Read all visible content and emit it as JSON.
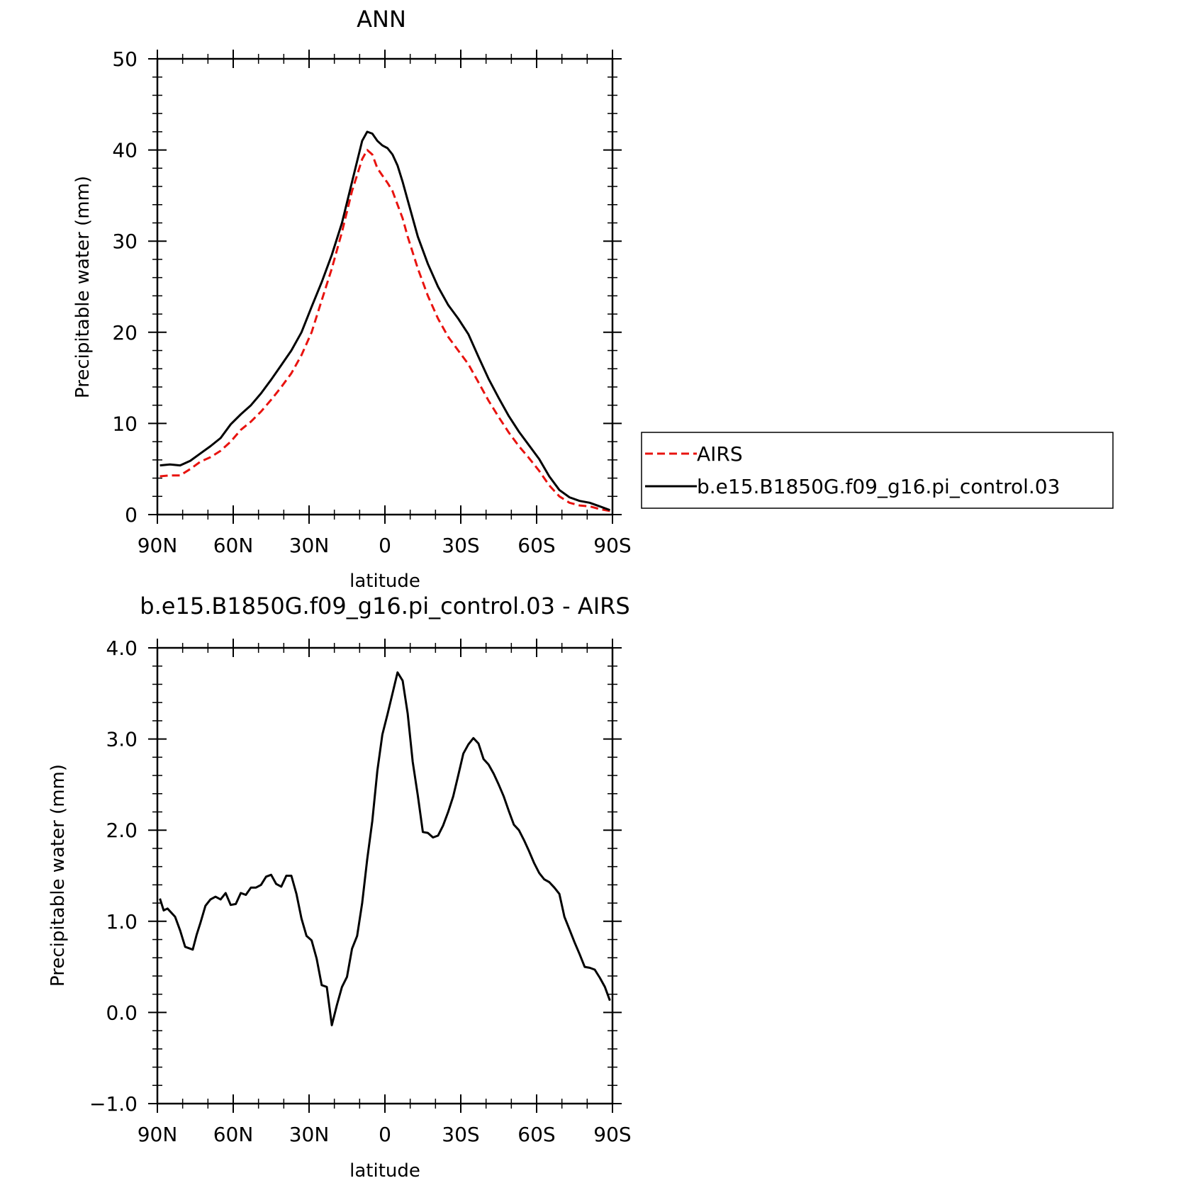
{
  "chart_data": [
    {
      "type": "line",
      "title": "ANN",
      "xlabel": "latitude",
      "ylabel": "Precipitable water (mm)",
      "xlim": [
        90,
        -90
      ],
      "ylim": [
        0,
        50
      ],
      "xticks": [
        90,
        60,
        30,
        0,
        -30,
        -60,
        -90
      ],
      "xtick_labels": [
        "90N",
        "60N",
        "30N",
        "0",
        "30S",
        "60S",
        "90S"
      ],
      "yticks": [
        0,
        10,
        20,
        30,
        40,
        50
      ],
      "ytick_labels": [
        "0",
        "10",
        "20",
        "30",
        "40",
        "50"
      ],
      "legend_position": "right",
      "x": [
        89,
        85,
        81,
        77,
        73,
        69,
        65,
        61,
        57,
        53,
        49,
        45,
        41,
        37,
        33,
        29,
        25,
        21,
        17,
        13,
        9,
        7,
        5,
        3,
        1,
        -1,
        -3,
        -5,
        -7,
        -9,
        -13,
        -17,
        -21,
        -25,
        -29,
        -33,
        -37,
        -41,
        -45,
        -49,
        -53,
        -57,
        -61,
        -65,
        -69,
        -73,
        -77,
        -81,
        -85,
        -89
      ],
      "series": [
        {
          "name": "AIRS",
          "color": "#e8130f",
          "dash": "dashed",
          "values": [
            4.2,
            4.3,
            4.3,
            5.0,
            5.8,
            6.3,
            7.0,
            8.0,
            9.3,
            10.2,
            11.3,
            12.6,
            14.0,
            15.5,
            17.5,
            20.0,
            23.5,
            27.0,
            31.0,
            35.5,
            39.0,
            40.0,
            39.5,
            38.0,
            37.2,
            36.4,
            35.5,
            34.0,
            32.5,
            30.5,
            27.0,
            24.0,
            21.5,
            19.5,
            18.0,
            16.5,
            14.5,
            12.5,
            10.7,
            9.0,
            7.5,
            6.2,
            4.8,
            3.2,
            2.0,
            1.3,
            1.0,
            0.9,
            0.6,
            0.4
          ]
        },
        {
          "name": "b.e15.B1850G.f09_g16.pi_control.03",
          "color": "#000000",
          "dash": "solid",
          "values": [
            5.4,
            5.5,
            5.4,
            5.9,
            6.7,
            7.5,
            8.4,
            9.9,
            11.0,
            12.0,
            13.3,
            14.8,
            16.4,
            18.0,
            20.0,
            22.8,
            25.5,
            28.5,
            32.0,
            36.5,
            41.0,
            42.0,
            41.8,
            41.0,
            40.5,
            40.2,
            39.5,
            38.3,
            36.5,
            34.5,
            30.5,
            27.5,
            25.0,
            23.0,
            21.5,
            19.8,
            17.3,
            14.9,
            12.8,
            10.8,
            9.1,
            7.6,
            6.1,
            4.2,
            2.7,
            1.9,
            1.5,
            1.3,
            0.9,
            0.5
          ]
        }
      ]
    },
    {
      "type": "line",
      "title": "b.e15.B1850G.f09_g16.pi_control.03 - AIRS",
      "xlabel": "latitude",
      "ylabel": "Precipitable water (mm)",
      "xlim": [
        90,
        -90
      ],
      "ylim": [
        -1.0,
        4.0
      ],
      "xticks": [
        90,
        60,
        30,
        0,
        -30,
        -60,
        -90
      ],
      "xtick_labels": [
        "90N",
        "60N",
        "30N",
        "0",
        "30S",
        "60S",
        "90S"
      ],
      "yticks": [
        -1.0,
        0.0,
        1.0,
        2.0,
        3.0,
        4.0
      ],
      "ytick_labels": [
        "-1.0",
        "0.0",
        "1.0",
        "2.0",
        "3.0",
        "4.0"
      ],
      "x": [
        89,
        87.5,
        86,
        83,
        81,
        79,
        76,
        74.5,
        73,
        71,
        69,
        67,
        65,
        63,
        61,
        59,
        57,
        55,
        53,
        51,
        49,
        47,
        45,
        43,
        41,
        39,
        37,
        35,
        33,
        31,
        29,
        27,
        25,
        23,
        21,
        19,
        17,
        15,
        13,
        11,
        9,
        7,
        5,
        3,
        1,
        -1,
        -3,
        -5,
        -7,
        -9,
        -11,
        -13,
        -15,
        -17,
        -19,
        -21,
        -23,
        -25,
        -27,
        -29,
        -31,
        -33,
        -35,
        -37,
        -39,
        -41,
        -43,
        -45,
        -47,
        -49,
        -51,
        -53,
        -55,
        -57,
        -59,
        -61,
        -63,
        -65,
        -67,
        -69,
        -71,
        -73,
        -75,
        -77,
        -79,
        -81,
        -83,
        -85,
        -87,
        -89
      ],
      "series": [
        {
          "name": "",
          "color": "#000000",
          "dash": "solid",
          "values": [
            1.25,
            1.12,
            1.14,
            1.05,
            0.9,
            0.72,
            0.69,
            0.85,
            0.98,
            1.17,
            1.24,
            1.27,
            1.24,
            1.31,
            1.18,
            1.19,
            1.31,
            1.29,
            1.37,
            1.37,
            1.4,
            1.49,
            1.51,
            1.41,
            1.38,
            1.5,
            1.5,
            1.3,
            1.03,
            0.84,
            0.79,
            0.59,
            0.3,
            0.28,
            -0.14,
            0.08,
            0.28,
            0.39,
            0.7,
            0.84,
            1.2,
            1.68,
            2.1,
            2.65,
            3.05,
            3.27,
            3.5,
            3.73,
            3.64,
            3.28,
            2.75,
            2.38,
            1.98,
            1.97,
            1.92,
            1.94,
            2.05,
            2.2,
            2.37,
            2.6,
            2.84,
            2.94,
            3.01,
            2.95,
            2.78,
            2.72,
            2.62,
            2.5,
            2.37,
            2.21,
            2.06,
            2.0,
            1.89,
            1.77,
            1.64,
            1.53,
            1.46,
            1.43,
            1.37,
            1.3,
            1.05,
            0.91,
            0.77,
            0.64,
            0.5,
            0.49,
            0.47,
            0.38,
            0.28,
            0.13
          ]
        }
      ]
    }
  ]
}
